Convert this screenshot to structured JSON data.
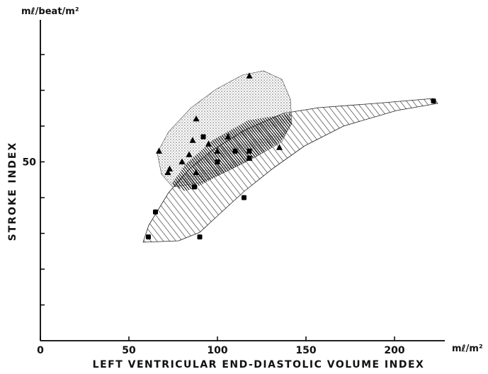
{
  "chart_data": {
    "type": "scatter",
    "title": "",
    "xlabel": "LEFT VENTRICULAR END-DIASTOLIC VOLUME INDEX",
    "ylabel": "STROKE INDEX",
    "x_unit": "mℓ/m²",
    "y_unit": "mℓ/beat/m²",
    "xlim": [
      0,
      230
    ],
    "ylim": [
      0,
      100
    ],
    "x_ticks": [
      0,
      50,
      100,
      150,
      200
    ],
    "y_ticks": [
      10,
      20,
      30,
      40,
      50,
      60,
      70,
      80
    ],
    "y_tick_labels": [
      {
        "value": 50,
        "label": "50"
      }
    ],
    "grid": false,
    "series": [
      {
        "marker": "triangle",
        "region_fill": "stippled",
        "points": [
          {
            "x": 118,
            "y": 74
          },
          {
            "x": 88,
            "y": 62
          },
          {
            "x": 86,
            "y": 56
          },
          {
            "x": 67,
            "y": 53
          },
          {
            "x": 80,
            "y": 50
          },
          {
            "x": 73,
            "y": 48
          },
          {
            "x": 72,
            "y": 47
          },
          {
            "x": 84,
            "y": 52
          },
          {
            "x": 95,
            "y": 55
          },
          {
            "x": 100,
            "y": 53
          },
          {
            "x": 106,
            "y": 57
          },
          {
            "x": 88,
            "y": 47
          },
          {
            "x": 135,
            "y": 54
          },
          {
            "x": 118,
            "y": 51
          }
        ]
      },
      {
        "marker": "square",
        "region_fill": "hatched",
        "points": [
          {
            "x": 222,
            "y": 67
          },
          {
            "x": 61,
            "y": 29
          },
          {
            "x": 90,
            "y": 29
          },
          {
            "x": 65,
            "y": 36
          },
          {
            "x": 115,
            "y": 40
          },
          {
            "x": 118,
            "y": 53
          },
          {
            "x": 118,
            "y": 51
          },
          {
            "x": 92,
            "y": 57
          },
          {
            "x": 87,
            "y": 43
          },
          {
            "x": 110,
            "y": 53
          },
          {
            "x": 100,
            "y": 50
          }
        ]
      }
    ]
  }
}
